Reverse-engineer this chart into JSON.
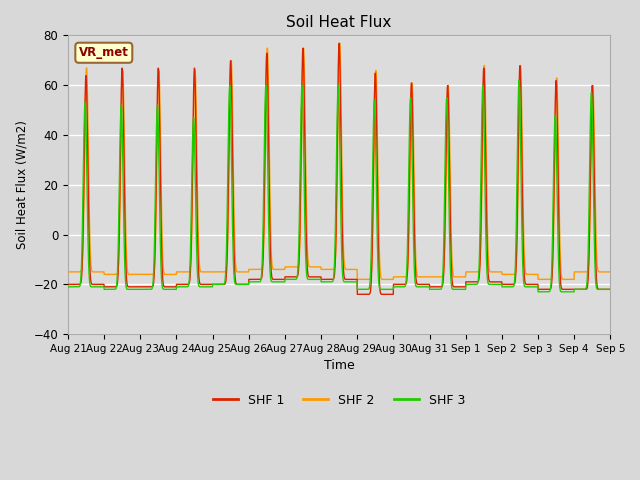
{
  "title": "Soil Heat Flux",
  "ylabel": "Soil Heat Flux (W/m2)",
  "xlabel": "Time",
  "xlabels": [
    "Aug 21",
    "Aug 22",
    "Aug 23",
    "Aug 24",
    "Aug 25",
    "Aug 26",
    "Aug 27",
    "Aug 28",
    "Aug 29",
    "Aug 30",
    "Aug 31",
    "Sep 1",
    "Sep 2",
    "Sep 3",
    "Sep 4",
    "Sep 5"
  ],
  "ylim": [
    -40,
    80
  ],
  "yticks": [
    -40,
    -20,
    0,
    20,
    40,
    60,
    80
  ],
  "legend_labels": [
    "SHF 1",
    "SHF 2",
    "SHF 3"
  ],
  "colors": [
    "#dd2200",
    "#ff9900",
    "#22cc00"
  ],
  "annotation": "VR_met",
  "bg_color": "#dcdcdc",
  "n_days": 15,
  "peaks1": [
    64,
    67,
    67,
    67,
    70,
    73,
    75,
    77,
    65,
    61,
    60,
    67,
    68,
    62,
    60
  ],
  "peaks2": [
    67,
    66,
    66,
    66,
    70,
    75,
    75,
    77,
    66,
    61,
    60,
    68,
    68,
    63,
    60
  ],
  "peaks3": [
    53,
    52,
    52,
    47,
    60,
    60,
    60,
    60,
    54,
    55,
    55,
    60,
    62,
    48,
    57
  ],
  "troughs1": [
    -20,
    -21,
    -21,
    -20,
    -20,
    -18,
    -17,
    -18,
    -24,
    -20,
    -21,
    -19,
    -20,
    -22,
    -22
  ],
  "troughs2": [
    -15,
    -16,
    -16,
    -15,
    -15,
    -14,
    -13,
    -14,
    -18,
    -17,
    -17,
    -15,
    -16,
    -18,
    -15
  ],
  "troughs3": [
    -21,
    -22,
    -22,
    -21,
    -20,
    -19,
    -18,
    -19,
    -22,
    -21,
    -22,
    -20,
    -21,
    -23,
    -22
  ],
  "peak_sharpness": 8.0,
  "pts_per_day": 144,
  "phase1": 0.0,
  "phase2": 0.015,
  "phase3": -0.025
}
